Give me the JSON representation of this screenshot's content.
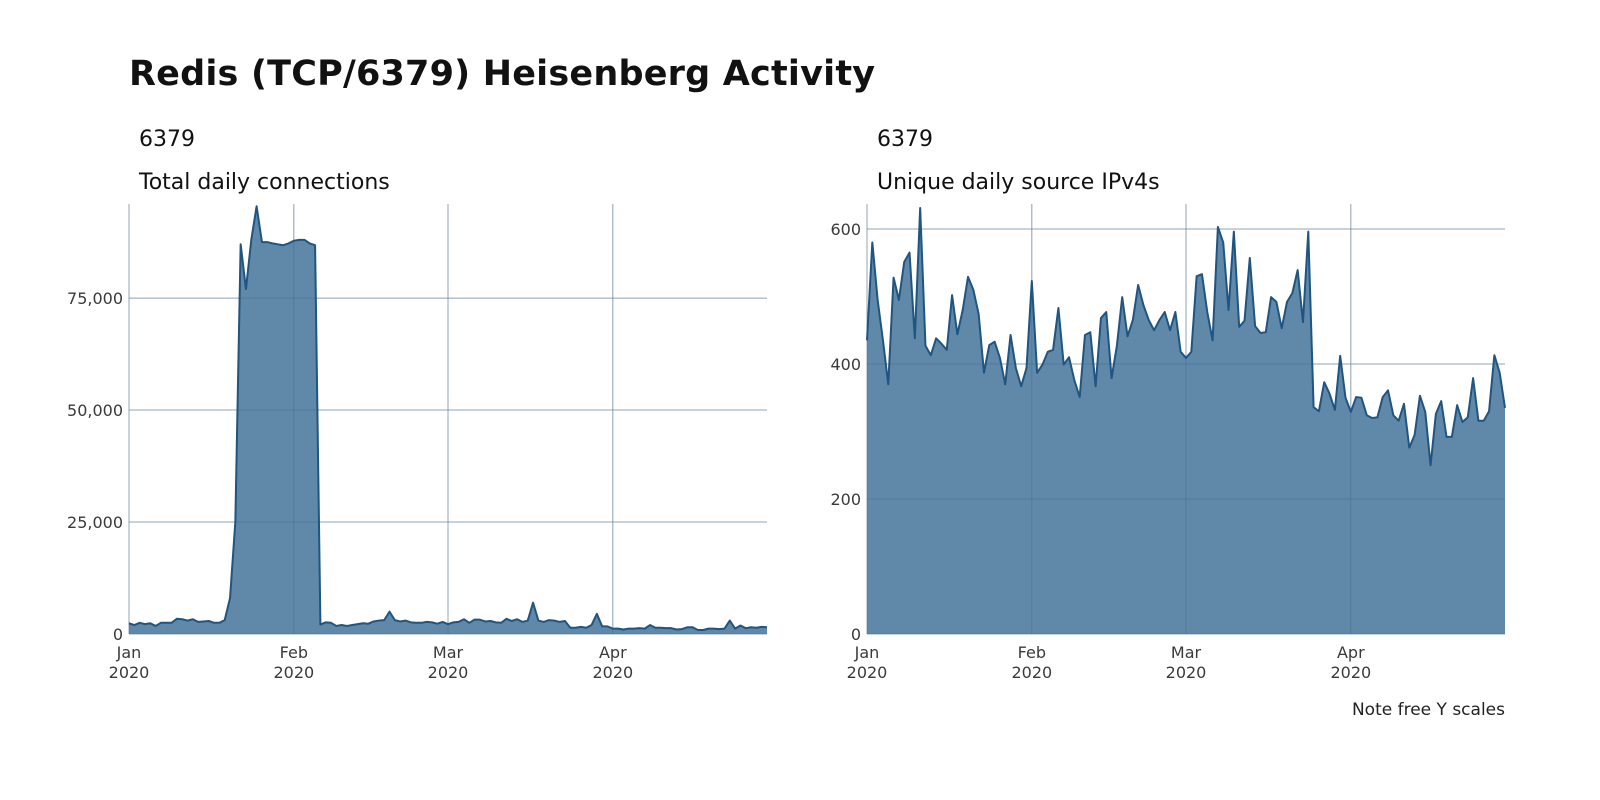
{
  "title": "Redis (TCP/6379) Heisenberg Activity",
  "caption": "Note free Y scales",
  "chart_data": [
    {
      "type": "area",
      "facet": "6379",
      "title": "Total daily connections",
      "xlabel": "",
      "ylabel": "",
      "x_start": "2020-01-01",
      "x_end": "2020-04-30",
      "x_ticks": [
        {
          "day": 0,
          "label": [
            "Jan",
            "2020"
          ]
        },
        {
          "day": 31,
          "label": [
            "Feb",
            "2020"
          ]
        },
        {
          "day": 60,
          "label": [
            "Mar",
            "2020"
          ]
        },
        {
          "day": 91,
          "label": [
            "Apr",
            "2020"
          ]
        }
      ],
      "y_ticks": [
        {
          "value": 0,
          "label": "0"
        },
        {
          "value": 25000,
          "label": "25,000"
        },
        {
          "value": 50000,
          "label": "50,000"
        },
        {
          "value": 75000,
          "label": "75,000"
        }
      ],
      "ylim": [
        0,
        96000
      ],
      "grid": true,
      "fill_color": "#5e87a8",
      "line_color": "#1f5580",
      "values": [
        2400,
        2000,
        2500,
        2200,
        2400,
        1800,
        2500,
        2500,
        2500,
        3400,
        3300,
        3000,
        3300,
        2700,
        2800,
        2900,
        2500,
        2500,
        3100,
        8000,
        25000,
        87000,
        77000,
        88000,
        95500,
        87500,
        87500,
        87200,
        87000,
        86800,
        87200,
        87800,
        88000,
        88000,
        87200,
        86800,
        2100,
        2600,
        2500,
        1800,
        2000,
        1800,
        2000,
        2200,
        2400,
        2300,
        2800,
        3000,
        3100,
        5000,
        3100,
        2800,
        3000,
        2600,
        2500,
        2500,
        2700,
        2600,
        2300,
        2700,
        2200,
        2600,
        2700,
        3300,
        2500,
        3200,
        3200,
        2800,
        2900,
        2600,
        2500,
        3400,
        2900,
        3300,
        2700,
        3000,
        7000,
        3000,
        2700,
        3100,
        3000,
        2700,
        2900,
        1400,
        1400,
        1600,
        1400,
        2000,
        4500,
        1700,
        1700,
        1200,
        1200,
        1000,
        1200,
        1200,
        1300,
        1200,
        2000,
        1400,
        1400,
        1300,
        1300,
        1000,
        1100,
        1500,
        1500,
        900,
        900,
        1200,
        1200,
        1100,
        1200,
        3000,
        1200,
        1900,
        1300,
        1500,
        1400,
        1600,
        1500
      ]
    },
    {
      "type": "area",
      "facet": "6379",
      "title": "Unique daily source IPv4s",
      "xlabel": "",
      "ylabel": "",
      "x_start": "2020-01-01",
      "x_end": "2020-04-30",
      "x_ticks": [
        {
          "day": 0,
          "label": [
            "Jan",
            "2020"
          ]
        },
        {
          "day": 31,
          "label": [
            "Feb",
            "2020"
          ]
        },
        {
          "day": 60,
          "label": [
            "Mar",
            "2020"
          ]
        },
        {
          "day": 91,
          "label": [
            "Apr",
            "2020"
          ]
        }
      ],
      "y_ticks": [
        {
          "value": 0,
          "label": "0"
        },
        {
          "value": 200,
          "label": "200"
        },
        {
          "value": 400,
          "label": "400"
        },
        {
          "value": 600,
          "label": "600"
        }
      ],
      "ylim": [
        0,
        637
      ],
      "grid": true,
      "fill_color": "#5e87a8",
      "line_color": "#1f5580",
      "values": [
        435,
        580,
        495,
        435,
        370,
        528,
        495,
        551,
        565,
        438,
        631,
        427,
        413,
        438,
        430,
        421,
        502,
        444,
        480,
        529,
        510,
        474,
        387,
        428,
        433,
        409,
        370,
        443,
        394,
        367,
        394,
        523,
        387,
        399,
        418,
        421,
        483,
        399,
        410,
        376,
        351,
        443,
        447,
        367,
        468,
        477,
        379,
        427,
        499,
        441,
        465,
        517,
        487,
        465,
        450,
        465,
        477,
        450,
        477,
        418,
        409,
        418,
        530,
        533,
        477,
        435,
        603,
        580,
        480,
        596,
        455,
        464,
        557,
        456,
        446,
        447,
        499,
        492,
        453,
        492,
        505,
        539,
        462,
        596,
        336,
        330,
        373,
        356,
        332,
        412,
        350,
        329,
        351,
        350,
        324,
        320,
        321,
        351,
        361,
        324,
        316,
        341,
        276,
        295,
        353,
        329,
        250,
        326,
        345,
        292,
        292,
        339,
        314,
        321,
        379,
        316,
        316,
        330,
        413,
        387,
        335
      ]
    }
  ]
}
